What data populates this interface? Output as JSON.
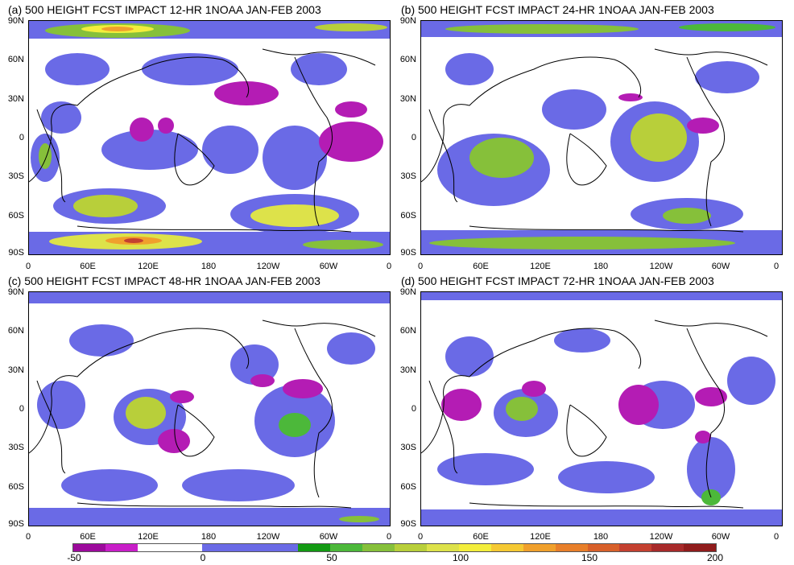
{
  "panels": [
    {
      "title": "(a)  500 HEIGHT FCST IMPACT 12-HR 1NOAA JAN-FEB 2003",
      "lat_labels": [
        "90N",
        "60N",
        "30N",
        "0",
        "30S",
        "60S",
        "90S"
      ],
      "lon_labels": [
        "0",
        "60E",
        "120E",
        "180",
        "120W",
        "60W",
        "0"
      ]
    },
    {
      "title": "(b)  500 HEIGHT FCST IMPACT 24-HR 1NOAA JAN-FEB 2003",
      "lat_labels": [
        "90N",
        "60N",
        "30N",
        "0",
        "30S",
        "60S",
        "90S"
      ],
      "lon_labels": [
        "0",
        "60E",
        "120E",
        "180",
        "120W",
        "60W",
        "0"
      ]
    },
    {
      "title": "(c)  500 HEIGHT FCST IMPACT 48-HR 1NOAA JAN-FEB 2003",
      "lat_labels": [
        "90N",
        "60N",
        "30N",
        "0",
        "30S",
        "60S",
        "90S"
      ],
      "lon_labels": [
        "0",
        "60E",
        "120E",
        "180",
        "120W",
        "60W",
        "0"
      ]
    },
    {
      "title": "(d)  500 HEIGHT FCST IMPACT 72-HR 1NOAA JAN-FEB 2003",
      "lat_labels": [
        "90N",
        "60N",
        "30N",
        "0",
        "30S",
        "60S",
        "90S"
      ],
      "lon_labels": [
        "0",
        "60E",
        "120E",
        "180",
        "120W",
        "60W",
        "0"
      ]
    }
  ],
  "colorbar": {
    "labels": [
      "-50",
      "0",
      "50",
      "100",
      "150",
      "200"
    ],
    "colors": [
      "#9c0a9c",
      "#c81ec8",
      "#ffffff",
      "#ffffff",
      "#6a6ae6",
      "#6a6ae6",
      "#6a6ae6",
      "#139a13",
      "#4cb83a",
      "#86c03a",
      "#b8cf3a",
      "#dde24a",
      "#f3ee3c",
      "#f5c933",
      "#f0a02c",
      "#e87f2a",
      "#d8602a",
      "#c44030",
      "#a82a2a",
      "#901c1c"
    ]
  },
  "colors": {
    "negative": "#b41cb4",
    "low_positive": "#6a6ae6",
    "mid": "#139a13",
    "high": "#e7e03a",
    "max": "#d83a2a"
  }
}
